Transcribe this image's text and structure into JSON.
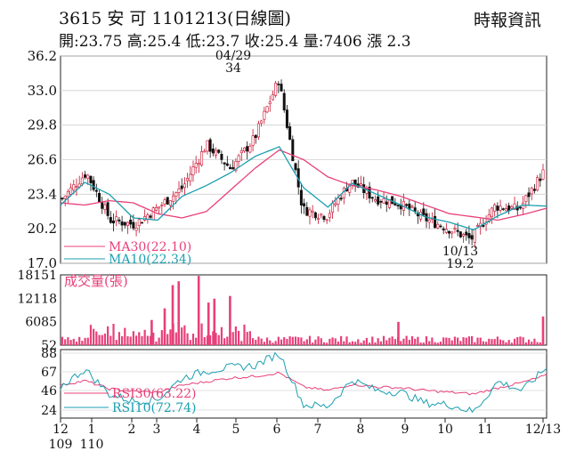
{
  "header": {
    "title": "3615 安 可 1101213(日線圖)",
    "source": "時報資訊",
    "ohlc_text": "開:23.75 高:25.4 低:23.7 收:25.4 量:7406 漲 2.3"
  },
  "chart_data": [
    {
      "type": "candlestick",
      "title": "3615 安 可 1101213(日線圖)",
      "yticks": [
        36.2,
        33.0,
        29.8,
        26.6,
        23.4,
        20.2,
        17.0
      ],
      "ylim": [
        17.0,
        36.2
      ],
      "xticks": [
        {
          "top": "12",
          "bottom": "109"
        },
        {
          "top": "1",
          "bottom": "110"
        },
        {
          "top": "2",
          "bottom": ""
        },
        {
          "top": "3",
          "bottom": ""
        },
        {
          "top": "4",
          "bottom": ""
        },
        {
          "top": "5",
          "bottom": ""
        },
        {
          "top": "6",
          "bottom": ""
        },
        {
          "top": "7",
          "bottom": ""
        },
        {
          "top": "8",
          "bottom": ""
        },
        {
          "top": "9",
          "bottom": ""
        },
        {
          "top": "10",
          "bottom": ""
        },
        {
          "top": "11",
          "bottom": ""
        },
        {
          "top": "12/13",
          "bottom": ""
        }
      ],
      "annotations": [
        {
          "date": "04/29",
          "value": "34",
          "kind": "high"
        },
        {
          "date": "10/13",
          "value": "19.2",
          "kind": "low"
        }
      ],
      "legend": [
        {
          "label": "MA30(22.10)",
          "color": "#e8407a"
        },
        {
          "label": "MA10(22.34)",
          "color": "#1a9fb0"
        }
      ],
      "series": [
        {
          "name": "MA30",
          "anchor_values": [
            22.6,
            22.4,
            22.8,
            22.6,
            21.6,
            21.2,
            21.8,
            23.8,
            25.8,
            27.5,
            26.6,
            25.0,
            24.2,
            23.8,
            23.2,
            22.4,
            21.6,
            21.3,
            21.0,
            21.5,
            22.1
          ]
        },
        {
          "name": "MA10",
          "anchor_values": [
            22.4,
            24.5,
            23.4,
            21.2,
            21.0,
            23.2,
            24.2,
            25.4,
            26.9,
            27.8,
            24.0,
            22.2,
            24.4,
            23.4,
            22.4,
            21.3,
            20.8,
            20.1,
            21.4,
            22.4,
            22.3
          ]
        },
        {
          "name": "close",
          "anchor_values": [
            23.0,
            25.4,
            21.0,
            20.6,
            22.2,
            24.0,
            28.0,
            25.8,
            28.6,
            34.0,
            22.0,
            21.4,
            24.6,
            23.0,
            22.6,
            21.2,
            20.3,
            19.2,
            22.3,
            22.0,
            25.4
          ]
        }
      ]
    },
    {
      "type": "bar",
      "title": "成交量(張)",
      "yticks": [
        18151,
        12118,
        6085,
        52
      ],
      "ylim": [
        0,
        18151
      ],
      "spikes": [
        {
          "month_pos": 2.8,
          "value": 6500
        },
        {
          "month_pos": 3.2,
          "value": 9500
        },
        {
          "month_pos": 3.4,
          "value": 15500
        },
        {
          "month_pos": 3.55,
          "value": 16500
        },
        {
          "month_pos": 4.05,
          "value": 17900
        },
        {
          "month_pos": 4.3,
          "value": 11000
        },
        {
          "month_pos": 4.45,
          "value": 12000
        },
        {
          "month_pos": 4.85,
          "value": 12700
        },
        {
          "month_pos": 8.85,
          "value": 6000
        },
        {
          "month_pos": 12.0,
          "value": 7406
        }
      ]
    },
    {
      "type": "line",
      "title": "RSI",
      "yticks": [
        88,
        67,
        46,
        24
      ],
      "ylim": [
        15,
        92
      ],
      "legend": [
        {
          "label": "RSI30(63.22)",
          "color": "#e8407a"
        },
        {
          "label": "RSI10(72.74)",
          "color": "#1a9fb0"
        }
      ],
      "series": [
        {
          "name": "RSI30",
          "anchor_values": [
            52,
            57,
            48,
            45,
            44,
            52,
            56,
            60,
            62,
            66,
            50,
            46,
            53,
            50,
            49,
            46,
            44,
            42,
            49,
            55,
            63
          ]
        },
        {
          "name": "RSI10",
          "anchor_values": [
            50,
            70,
            42,
            34,
            36,
            60,
            68,
            72,
            74,
            88,
            30,
            28,
            58,
            46,
            44,
            32,
            30,
            22,
            56,
            46,
            72
          ]
        }
      ]
    }
  ]
}
